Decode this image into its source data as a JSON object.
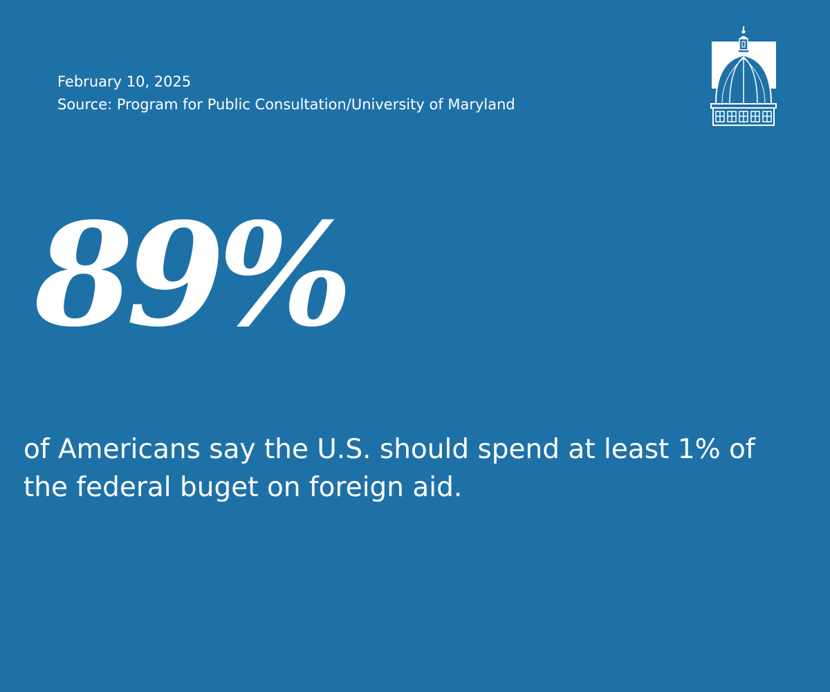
{
  "header": {
    "date": "February 10, 2025",
    "source": "Source: Program for Public Consultation/University of Maryland"
  },
  "stat": {
    "value": "89%"
  },
  "statement": {
    "text": "of Americans say the U.S. should spend at least 1% of the federal buget on foreign aid."
  },
  "logo": {
    "icon": "capitol-dome-icon"
  },
  "colors": {
    "background": "#1e71a7",
    "text": "#ffffff"
  }
}
